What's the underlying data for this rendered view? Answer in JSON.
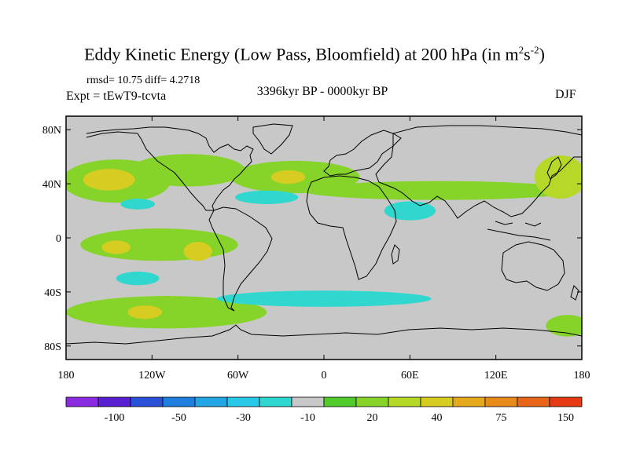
{
  "title": {
    "main": "Eddy Kinetic Energy (Low Pass, Bloomfield) at 200 hPa (in m",
    "unit_sup1": "2",
    "unit_mid": "s",
    "unit_sup2": "-2",
    "close": ")"
  },
  "stats": "rmsd= 10.75 diff= 4.2718",
  "experiment": "Expt = tEwT9-tcvta",
  "period": "3396kyr BP - 0000kyr BP",
  "season": "DJF",
  "axes": {
    "y_ticks": [
      "80N",
      "40N",
      "0",
      "40S",
      "80S"
    ],
    "y_values": [
      80,
      40,
      0,
      -40,
      -80
    ],
    "x_ticks": [
      "180",
      "120W",
      "60W",
      "0",
      "60E",
      "120E",
      "180"
    ],
    "x_values": [
      -180,
      -120,
      -60,
      0,
      60,
      120,
      180
    ]
  },
  "colorbar": {
    "colors": [
      "#8a2be2",
      "#5a1fd0",
      "#2a52d8",
      "#1f7fe0",
      "#22a6e6",
      "#29c8e8",
      "#30d7cf",
      "#c8c8c8",
      "#4fcb2c",
      "#86d42a",
      "#b6d828",
      "#d7cc21",
      "#e5aa1c",
      "#e88a1a",
      "#e86418",
      "#e53a14"
    ],
    "labels": [
      "-100",
      "-50",
      "-30",
      "-10",
      "20",
      "40",
      "75",
      "150"
    ]
  },
  "chart_data": {
    "type": "map",
    "variable": "Eddy Kinetic Energy difference (m2 s-2)",
    "lon_range": [
      -180,
      180
    ],
    "lat_range": [
      -90,
      90
    ],
    "background": "#c8c8c8",
    "anomalies": [
      {
        "name": "NE Pacific green",
        "lon": -145,
        "lat": 42,
        "rx": 38,
        "ry": 16,
        "level": "#86d42a"
      },
      {
        "name": "NE Pacific core",
        "lon": -150,
        "lat": 43,
        "rx": 18,
        "ry": 8,
        "level": "#d7cc21"
      },
      {
        "name": "N America jet",
        "lon": -95,
        "lat": 50,
        "rx": 40,
        "ry": 12,
        "level": "#86d42a"
      },
      {
        "name": "N Atlantic jet",
        "lon": -20,
        "lat": 45,
        "rx": 45,
        "ry": 12,
        "level": "#86d42a"
      },
      {
        "name": "N Atlantic core",
        "lon": -25,
        "lat": 45,
        "rx": 12,
        "ry": 5,
        "level": "#d7cc21"
      },
      {
        "name": "Eurasian jet",
        "lon": 80,
        "lat": 35,
        "rx": 95,
        "ry": 7,
        "level": "#86d42a"
      },
      {
        "name": "W Pacific",
        "lon": 165,
        "lat": 45,
        "rx": 18,
        "ry": 16,
        "level": "#b6d828"
      },
      {
        "name": "E Pacific tropics",
        "lon": -115,
        "lat": -5,
        "rx": 55,
        "ry": 12,
        "level": "#86d42a"
      },
      {
        "name": "E Pacific core",
        "lon": -145,
        "lat": -7,
        "rx": 10,
        "ry": 5,
        "level": "#d7cc21"
      },
      {
        "name": "Peru core",
        "lon": -88,
        "lat": -10,
        "rx": 10,
        "ry": 7,
        "level": "#d7cc21"
      },
      {
        "name": "S Pacific jet",
        "lon": -110,
        "lat": -55,
        "rx": 70,
        "ry": 12,
        "level": "#86d42a"
      },
      {
        "name": "S Pacific core",
        "lon": -125,
        "lat": -55,
        "rx": 12,
        "ry": 5,
        "level": "#d7cc21"
      },
      {
        "name": "Pacific blue",
        "lon": -130,
        "lat": 25,
        "rx": 12,
        "ry": 4,
        "level": "#30d7cf"
      },
      {
        "name": "Atlantic blue",
        "lon": -40,
        "lat": 30,
        "rx": 22,
        "ry": 5,
        "level": "#30d7cf"
      },
      {
        "name": "S Pacific blue",
        "lon": -130,
        "lat": -30,
        "rx": 15,
        "ry": 5,
        "level": "#30d7cf"
      },
      {
        "name": "Arabian blue",
        "lon": 60,
        "lat": 20,
        "rx": 18,
        "ry": 7,
        "level": "#30d7cf"
      },
      {
        "name": "S Ocean blue",
        "lon": 0,
        "lat": -45,
        "rx": 75,
        "ry": 6,
        "level": "#30d7cf"
      },
      {
        "name": "SW Pacific",
        "lon": 170,
        "lat": -65,
        "rx": 15,
        "ry": 8,
        "level": "#86d42a"
      }
    ]
  }
}
